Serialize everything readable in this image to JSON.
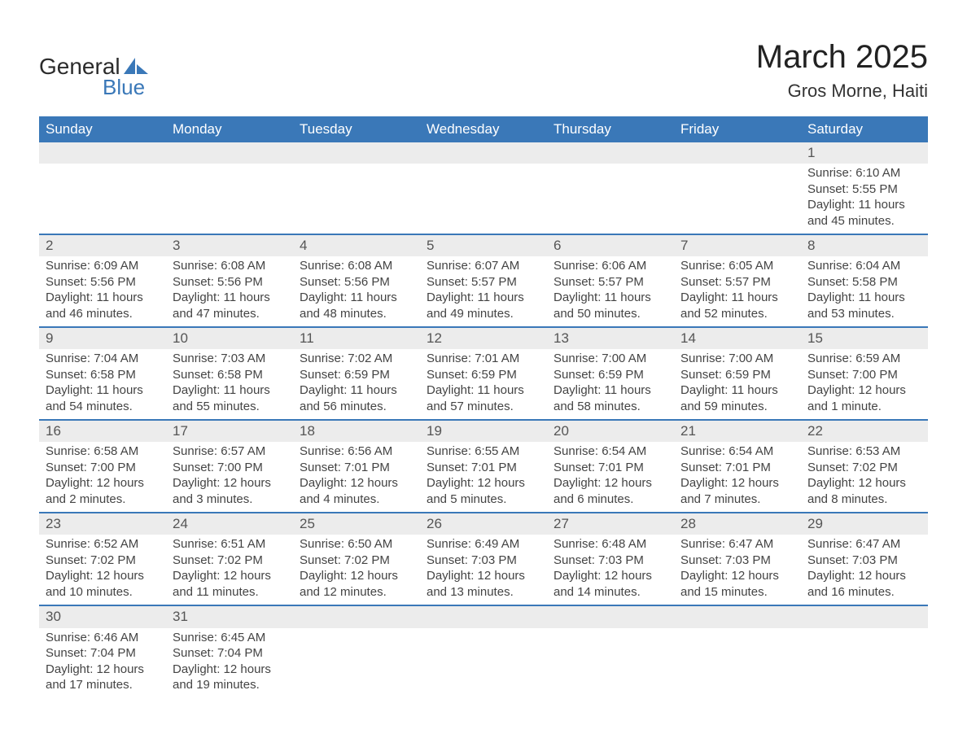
{
  "logo": {
    "text1": "General",
    "text2": "Blue"
  },
  "title": "March 2025",
  "subtitle": "Gros Morne, Haiti",
  "colors": {
    "header_bg": "#3a78b8",
    "header_text": "#ffffff",
    "daynum_bg": "#ececec",
    "row_border": "#3a78b8",
    "body_text": "#444444"
  },
  "weekdays": [
    "Sunday",
    "Monday",
    "Tuesday",
    "Wednesday",
    "Thursday",
    "Friday",
    "Saturday"
  ],
  "weeks": [
    [
      null,
      null,
      null,
      null,
      null,
      null,
      {
        "n": "1",
        "sunrise": "Sunrise: 6:10 AM",
        "sunset": "Sunset: 5:55 PM",
        "day1": "Daylight: 11 hours",
        "day2": "and 45 minutes."
      }
    ],
    [
      {
        "n": "2",
        "sunrise": "Sunrise: 6:09 AM",
        "sunset": "Sunset: 5:56 PM",
        "day1": "Daylight: 11 hours",
        "day2": "and 46 minutes."
      },
      {
        "n": "3",
        "sunrise": "Sunrise: 6:08 AM",
        "sunset": "Sunset: 5:56 PM",
        "day1": "Daylight: 11 hours",
        "day2": "and 47 minutes."
      },
      {
        "n": "4",
        "sunrise": "Sunrise: 6:08 AM",
        "sunset": "Sunset: 5:56 PM",
        "day1": "Daylight: 11 hours",
        "day2": "and 48 minutes."
      },
      {
        "n": "5",
        "sunrise": "Sunrise: 6:07 AM",
        "sunset": "Sunset: 5:57 PM",
        "day1": "Daylight: 11 hours",
        "day2": "and 49 minutes."
      },
      {
        "n": "6",
        "sunrise": "Sunrise: 6:06 AM",
        "sunset": "Sunset: 5:57 PM",
        "day1": "Daylight: 11 hours",
        "day2": "and 50 minutes."
      },
      {
        "n": "7",
        "sunrise": "Sunrise: 6:05 AM",
        "sunset": "Sunset: 5:57 PM",
        "day1": "Daylight: 11 hours",
        "day2": "and 52 minutes."
      },
      {
        "n": "8",
        "sunrise": "Sunrise: 6:04 AM",
        "sunset": "Sunset: 5:58 PM",
        "day1": "Daylight: 11 hours",
        "day2": "and 53 minutes."
      }
    ],
    [
      {
        "n": "9",
        "sunrise": "Sunrise: 7:04 AM",
        "sunset": "Sunset: 6:58 PM",
        "day1": "Daylight: 11 hours",
        "day2": "and 54 minutes."
      },
      {
        "n": "10",
        "sunrise": "Sunrise: 7:03 AM",
        "sunset": "Sunset: 6:58 PM",
        "day1": "Daylight: 11 hours",
        "day2": "and 55 minutes."
      },
      {
        "n": "11",
        "sunrise": "Sunrise: 7:02 AM",
        "sunset": "Sunset: 6:59 PM",
        "day1": "Daylight: 11 hours",
        "day2": "and 56 minutes."
      },
      {
        "n": "12",
        "sunrise": "Sunrise: 7:01 AM",
        "sunset": "Sunset: 6:59 PM",
        "day1": "Daylight: 11 hours",
        "day2": "and 57 minutes."
      },
      {
        "n": "13",
        "sunrise": "Sunrise: 7:00 AM",
        "sunset": "Sunset: 6:59 PM",
        "day1": "Daylight: 11 hours",
        "day2": "and 58 minutes."
      },
      {
        "n": "14",
        "sunrise": "Sunrise: 7:00 AM",
        "sunset": "Sunset: 6:59 PM",
        "day1": "Daylight: 11 hours",
        "day2": "and 59 minutes."
      },
      {
        "n": "15",
        "sunrise": "Sunrise: 6:59 AM",
        "sunset": "Sunset: 7:00 PM",
        "day1": "Daylight: 12 hours",
        "day2": "and 1 minute."
      }
    ],
    [
      {
        "n": "16",
        "sunrise": "Sunrise: 6:58 AM",
        "sunset": "Sunset: 7:00 PM",
        "day1": "Daylight: 12 hours",
        "day2": "and 2 minutes."
      },
      {
        "n": "17",
        "sunrise": "Sunrise: 6:57 AM",
        "sunset": "Sunset: 7:00 PM",
        "day1": "Daylight: 12 hours",
        "day2": "and 3 minutes."
      },
      {
        "n": "18",
        "sunrise": "Sunrise: 6:56 AM",
        "sunset": "Sunset: 7:01 PM",
        "day1": "Daylight: 12 hours",
        "day2": "and 4 minutes."
      },
      {
        "n": "19",
        "sunrise": "Sunrise: 6:55 AM",
        "sunset": "Sunset: 7:01 PM",
        "day1": "Daylight: 12 hours",
        "day2": "and 5 minutes."
      },
      {
        "n": "20",
        "sunrise": "Sunrise: 6:54 AM",
        "sunset": "Sunset: 7:01 PM",
        "day1": "Daylight: 12 hours",
        "day2": "and 6 minutes."
      },
      {
        "n": "21",
        "sunrise": "Sunrise: 6:54 AM",
        "sunset": "Sunset: 7:01 PM",
        "day1": "Daylight: 12 hours",
        "day2": "and 7 minutes."
      },
      {
        "n": "22",
        "sunrise": "Sunrise: 6:53 AM",
        "sunset": "Sunset: 7:02 PM",
        "day1": "Daylight: 12 hours",
        "day2": "and 8 minutes."
      }
    ],
    [
      {
        "n": "23",
        "sunrise": "Sunrise: 6:52 AM",
        "sunset": "Sunset: 7:02 PM",
        "day1": "Daylight: 12 hours",
        "day2": "and 10 minutes."
      },
      {
        "n": "24",
        "sunrise": "Sunrise: 6:51 AM",
        "sunset": "Sunset: 7:02 PM",
        "day1": "Daylight: 12 hours",
        "day2": "and 11 minutes."
      },
      {
        "n": "25",
        "sunrise": "Sunrise: 6:50 AM",
        "sunset": "Sunset: 7:02 PM",
        "day1": "Daylight: 12 hours",
        "day2": "and 12 minutes."
      },
      {
        "n": "26",
        "sunrise": "Sunrise: 6:49 AM",
        "sunset": "Sunset: 7:03 PM",
        "day1": "Daylight: 12 hours",
        "day2": "and 13 minutes."
      },
      {
        "n": "27",
        "sunrise": "Sunrise: 6:48 AM",
        "sunset": "Sunset: 7:03 PM",
        "day1": "Daylight: 12 hours",
        "day2": "and 14 minutes."
      },
      {
        "n": "28",
        "sunrise": "Sunrise: 6:47 AM",
        "sunset": "Sunset: 7:03 PM",
        "day1": "Daylight: 12 hours",
        "day2": "and 15 minutes."
      },
      {
        "n": "29",
        "sunrise": "Sunrise: 6:47 AM",
        "sunset": "Sunset: 7:03 PM",
        "day1": "Daylight: 12 hours",
        "day2": "and 16 minutes."
      }
    ],
    [
      {
        "n": "30",
        "sunrise": "Sunrise: 6:46 AM",
        "sunset": "Sunset: 7:04 PM",
        "day1": "Daylight: 12 hours",
        "day2": "and 17 minutes."
      },
      {
        "n": "31",
        "sunrise": "Sunrise: 6:45 AM",
        "sunset": "Sunset: 7:04 PM",
        "day1": "Daylight: 12 hours",
        "day2": "and 19 minutes."
      },
      null,
      null,
      null,
      null,
      null
    ]
  ]
}
